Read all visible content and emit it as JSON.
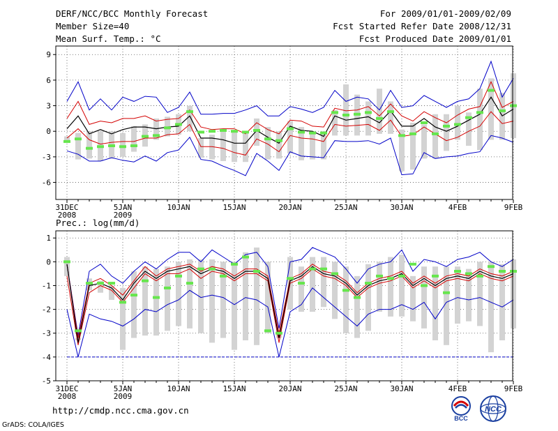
{
  "header": {
    "title": "DERF/NCC/BCC Monthly Forecast",
    "member_size": "Member Size=40",
    "variable": "Mean Surf. Temp.: °C",
    "period": "For 2009/01/01-2009/02/09",
    "started": "Fcst Started Refer Date 2008/12/31",
    "produced": "Fcst Produced Date 2009/01/01"
  },
  "footer": {
    "url": "http://cmdp.ncc.cma.gov.cn",
    "grads": "GrADS: COLA/IGES",
    "logo_bcc": "BCC",
    "logo_ncc": "NCC"
  },
  "colors": {
    "ensemble_mean": "#000000",
    "spread_std": "#d40000",
    "spread_minmax": "#0000c8",
    "box": "#d3d3d3",
    "marker": "#66e64d",
    "zero_ref": "#0000c8"
  },
  "chart_data": [
    {
      "type": "line",
      "title": "Mean Surf. Temp.: °C",
      "x_days": [
        0,
        1,
        2,
        3,
        4,
        5,
        6,
        7,
        8,
        9,
        10,
        11,
        12,
        13,
        14,
        15,
        16,
        17,
        18,
        19,
        20,
        21,
        22,
        23,
        24,
        25,
        26,
        27,
        28,
        29,
        30,
        31,
        32,
        33,
        34,
        35,
        36,
        37,
        38,
        39,
        40
      ],
      "x_tick_days": [
        0,
        5,
        10,
        15,
        20,
        25,
        30,
        35,
        40
      ],
      "x_tick_labels": [
        "31DEC",
        "5JAN",
        "10JAN",
        "15JAN",
        "20JAN",
        "25JAN",
        "30JAN",
        "4FEB",
        "9FEB"
      ],
      "x_tick_sublabels": [
        "2008",
        "2009",
        "",
        "",
        "",
        "",
        "",
        "",
        ""
      ],
      "ylim": [
        -8,
        10
      ],
      "y_ticks": [
        -6,
        -3,
        0,
        3,
        6,
        9
      ],
      "series": [
        {
          "name": "ensemble_max",
          "values": [
            3.5,
            5.8,
            2.5,
            3.8,
            2.5,
            4.0,
            3.5,
            4.1,
            4.0,
            2.2,
            2.8,
            4.6,
            2.0,
            2.0,
            2.1,
            2.1,
            2.5,
            3.0,
            1.8,
            1.8,
            2.9,
            2.6,
            2.2,
            2.8,
            4.8,
            3.5,
            4.0,
            3.8,
            2.5,
            4.8,
            2.8,
            3.0,
            4.2,
            3.5,
            2.8,
            3.5,
            3.8,
            5.0,
            8.2,
            4.0,
            6.2
          ]
        },
        {
          "name": "mean_plus_std",
          "values": [
            1.5,
            3.5,
            0.8,
            1.2,
            1.0,
            1.5,
            1.5,
            1.8,
            1.2,
            1.4,
            1.5,
            2.5,
            0.5,
            0.2,
            0.3,
            0.3,
            -0.3,
            1.0,
            0.2,
            -0.3,
            1.3,
            1.2,
            0.6,
            0.5,
            2.7,
            2.4,
            2.5,
            2.9,
            1.8,
            3.2,
            1.8,
            1.2,
            2.3,
            1.6,
            1.0,
            1.9,
            2.6,
            2.9,
            5.8,
            2.8,
            3.5
          ]
        },
        {
          "name": "ensemble_mean",
          "values": [
            0.3,
            1.8,
            -0.3,
            0.2,
            -0.3,
            0.2,
            0.5,
            0.5,
            0.3,
            0.5,
            0.6,
            1.8,
            -0.8,
            -0.8,
            -1.0,
            -1.4,
            -1.4,
            0.1,
            -0.7,
            -1.4,
            0.6,
            0.1,
            0.0,
            -0.6,
            1.8,
            1.3,
            1.5,
            1.7,
            1.0,
            2.4,
            0.6,
            0.6,
            1.5,
            0.5,
            0.0,
            0.6,
            1.3,
            2.0,
            4.0,
            1.8,
            2.6
          ]
        },
        {
          "name": "mean_minus_std",
          "values": [
            -0.8,
            0.3,
            -1.0,
            -1.5,
            -1.3,
            -1.2,
            -1.2,
            -0.8,
            -0.8,
            -0.4,
            -0.3,
            0.8,
            -1.8,
            -1.8,
            -2.0,
            -2.5,
            -2.8,
            -0.9,
            -1.5,
            -2.4,
            -0.5,
            -0.8,
            -0.9,
            -1.2,
            0.8,
            0.6,
            0.7,
            0.8,
            0.1,
            1.3,
            -0.6,
            -0.4,
            0.5,
            -0.3,
            -1.1,
            -0.7,
            0.0,
            0.6,
            2.3,
            0.9,
            1.2
          ]
        },
        {
          "name": "ensemble_min",
          "values": [
            -2.3,
            -2.7,
            -3.5,
            -3.5,
            -3.1,
            -3.4,
            -3.6,
            -2.9,
            -3.5,
            -2.5,
            -2.2,
            -0.7,
            -3.3,
            -3.5,
            -4.1,
            -4.6,
            -5.2,
            -2.6,
            -3.5,
            -4.6,
            -2.4,
            -2.9,
            -3.0,
            -3.1,
            -1.1,
            -1.2,
            -1.2,
            -1.1,
            -1.5,
            -0.8,
            -5.1,
            -5.0,
            -2.5,
            -3.2,
            -3.0,
            -2.9,
            -2.6,
            -2.4,
            -0.5,
            -0.8,
            -1.3
          ]
        },
        {
          "name": "box_high",
          "values": [
            -0.6,
            -0.2,
            0.0,
            0.0,
            0.0,
            -0.2,
            0.6,
            0.8,
            1.5,
            1.7,
            2.0,
            3.0,
            -0.8,
            -0.4,
            0.0,
            0.0,
            0.0,
            1.5,
            0.5,
            0.0,
            1.2,
            0.5,
            0.0,
            0.0,
            2.5,
            5.5,
            4.3,
            3.5,
            5.0,
            3.5,
            0.2,
            1.0,
            0.8,
            2.0,
            2.0,
            3.0,
            2.2,
            5.0,
            6.2,
            4.5,
            6.8
          ]
        },
        {
          "name": "box_low",
          "values": [
            -1.2,
            -3.3,
            -3.2,
            -3.5,
            -3.2,
            -3.0,
            -2.4,
            -1.8,
            -1.0,
            -0.6,
            -0.4,
            0.0,
            -3.1,
            -3.3,
            -3.5,
            -3.6,
            -3.6,
            -1.7,
            -3.3,
            -3.2,
            -2.6,
            -3.4,
            -3.3,
            -3.3,
            -0.5,
            -0.5,
            -0.5,
            -0.5,
            -0.3,
            -0.3,
            -4.7,
            -4.5,
            -3.2,
            -3.2,
            -2.3,
            -1.0,
            -1.7,
            -2.2,
            -1.0,
            -1.0,
            -0.8
          ]
        },
        {
          "name": "marker",
          "values": [
            -1.2,
            -0.9,
            -2.0,
            -1.8,
            -1.7,
            -1.8,
            -1.7,
            -0.6,
            -0.5,
            0.4,
            0.8,
            2.3,
            -0.1,
            0.0,
            0.1,
            0.0,
            -0.1,
            0.1,
            -0.9,
            -1.1,
            0.3,
            -0.1,
            -0.2,
            -0.2,
            2.2,
            1.9,
            2.0,
            2.2,
            1.5,
            2.3,
            -0.5,
            -0.3,
            1.0,
            -0.3,
            0.6,
            0.8,
            1.6,
            2.2,
            4.8,
            2.4,
            3.0
          ]
        }
      ]
    },
    {
      "type": "line",
      "title": "Prec.: log(mm/d)",
      "x_days": [
        0,
        1,
        2,
        3,
        4,
        5,
        6,
        7,
        8,
        9,
        10,
        11,
        12,
        13,
        14,
        15,
        16,
        17,
        18,
        19,
        20,
        21,
        22,
        23,
        24,
        25,
        26,
        27,
        28,
        29,
        30,
        31,
        32,
        33,
        34,
        35,
        36,
        37,
        38,
        39,
        40
      ],
      "x_tick_days": [
        0,
        5,
        10,
        15,
        20,
        25,
        30,
        35,
        40
      ],
      "x_tick_labels": [
        "31DEC",
        "5JAN",
        "10JAN",
        "15JAN",
        "20JAN",
        "25JAN",
        "30JAN",
        "4FEB",
        "9FEB"
      ],
      "x_tick_sublabels": [
        "2008",
        "2009",
        "",
        "",
        "",
        "",
        "",
        "",
        ""
      ],
      "ylim": [
        -5,
        1.3
      ],
      "y_ticks": [
        -5,
        -4,
        -3,
        -2,
        -1,
        0,
        1
      ],
      "reference_line": -4,
      "series": [
        {
          "name": "ensemble_max",
          "values": [
            -0.1,
            -3.1,
            -0.4,
            -0.1,
            -0.6,
            -0.9,
            -0.4,
            0.0,
            -0.3,
            0.1,
            0.4,
            0.4,
            0.0,
            0.5,
            0.2,
            -0.1,
            0.3,
            0.4,
            -0.2,
            -2.8,
            0.0,
            0.1,
            0.6,
            0.4,
            0.2,
            -0.3,
            -0.9,
            -0.3,
            -0.1,
            0.0,
            0.5,
            -0.4,
            0.1,
            0.0,
            -0.2,
            0.1,
            0.2,
            0.4,
            0.0,
            -0.2,
            0.1
          ]
        },
        {
          "name": "mean_plus_std",
          "values": [
            -0.1,
            -3.2,
            -0.9,
            -0.7,
            -1.0,
            -1.4,
            -0.8,
            -0.2,
            -0.6,
            -0.3,
            -0.2,
            -0.1,
            -0.4,
            -0.2,
            -0.3,
            -0.6,
            -0.3,
            -0.3,
            -0.6,
            -3.0,
            -0.7,
            -0.5,
            -0.1,
            -0.4,
            -0.5,
            -0.8,
            -1.3,
            -0.9,
            -0.7,
            -0.6,
            -0.4,
            -0.9,
            -0.6,
            -0.9,
            -0.6,
            -0.5,
            -0.6,
            -0.3,
            -0.5,
            -0.6,
            -0.4
          ]
        },
        {
          "name": "ensemble_mean",
          "values": [
            -0.1,
            -3.4,
            -1.0,
            -0.9,
            -1.1,
            -1.6,
            -0.9,
            -0.4,
            -0.7,
            -0.4,
            -0.3,
            -0.2,
            -0.5,
            -0.3,
            -0.4,
            -0.7,
            -0.4,
            -0.4,
            -0.7,
            -3.2,
            -0.8,
            -0.6,
            -0.2,
            -0.5,
            -0.6,
            -0.9,
            -1.4,
            -1.0,
            -0.8,
            -0.7,
            -0.5,
            -1.0,
            -0.7,
            -1.0,
            -0.7,
            -0.6,
            -0.7,
            -0.4,
            -0.6,
            -0.7,
            -0.5
          ]
        },
        {
          "name": "mean_minus_std",
          "values": [
            -0.6,
            -3.5,
            -1.3,
            -1.0,
            -1.2,
            -1.7,
            -1.1,
            -0.5,
            -0.8,
            -0.5,
            -0.5,
            -0.3,
            -0.7,
            -0.4,
            -0.5,
            -0.8,
            -0.5,
            -0.5,
            -0.8,
            -3.4,
            -0.9,
            -0.7,
            -0.3,
            -0.6,
            -0.7,
            -1.0,
            -1.5,
            -1.1,
            -0.9,
            -0.8,
            -0.6,
            -1.1,
            -0.8,
            -1.1,
            -0.8,
            -0.7,
            -0.8,
            -0.5,
            -0.7,
            -0.8,
            -0.6
          ]
        },
        {
          "name": "ensemble_min",
          "values": [
            -2.0,
            -4.0,
            -2.2,
            -2.4,
            -2.5,
            -2.7,
            -2.4,
            -2.0,
            -2.1,
            -1.8,
            -1.6,
            -1.2,
            -1.5,
            -1.4,
            -1.5,
            -1.8,
            -1.5,
            -1.6,
            -1.9,
            -4.0,
            -2.1,
            -1.8,
            -1.1,
            -1.5,
            -1.9,
            -2.3,
            -2.7,
            -2.2,
            -2.0,
            -2.0,
            -1.8,
            -2.0,
            -1.7,
            -2.4,
            -1.7,
            -1.5,
            -1.6,
            -1.5,
            -1.7,
            -1.9,
            -1.6
          ]
        },
        {
          "name": "box_high",
          "values": [
            0.2,
            -3.2,
            -0.7,
            -0.8,
            -1.0,
            -1.1,
            -0.4,
            -0.2,
            -0.3,
            -0.2,
            0.0,
            0.1,
            0.1,
            0.1,
            0.0,
            0.0,
            0.4,
            0.6,
            0.0,
            -2.9,
            0.2,
            -0.2,
            0.2,
            0.2,
            0.0,
            -0.2,
            -0.6,
            -0.1,
            0.0,
            0.2,
            0.3,
            -0.6,
            -0.2,
            -0.2,
            -0.2,
            -0.2,
            -0.3,
            0.0,
            0.0,
            -0.1,
            0.1
          ]
        },
        {
          "name": "box_low",
          "values": [
            -0.6,
            -3.3,
            -1.2,
            -1.3,
            -1.6,
            -3.7,
            -3.2,
            -3.1,
            -3.1,
            -2.9,
            -2.7,
            -2.8,
            -3.0,
            -3.4,
            -3.2,
            -3.7,
            -3.3,
            -3.5,
            -3.0,
            -3.2,
            -2.0,
            -2.1,
            -2.1,
            -1.9,
            -2.4,
            -3.0,
            -3.2,
            -2.9,
            -2.1,
            -2.3,
            -2.3,
            -2.5,
            -2.8,
            -3.3,
            -3.5,
            -2.6,
            -2.5,
            -2.7,
            -3.8,
            -3.3,
            -2.8
          ]
        },
        {
          "name": "marker",
          "values": [
            0.0,
            -2.9,
            -0.9,
            -0.9,
            -0.9,
            -1.7,
            -1.4,
            -0.8,
            -1.5,
            -1.1,
            -0.6,
            -0.9,
            -0.3,
            -0.3,
            -0.6,
            -0.1,
            0.2,
            -0.4,
            -2.9,
            -3.0,
            -0.7,
            -0.9,
            -0.3,
            -0.3,
            -0.5,
            -1.2,
            -1.5,
            -0.9,
            -0.6,
            -0.7,
            -0.6,
            -0.1,
            -1.0,
            -0.6,
            -1.3,
            -0.4,
            -0.5,
            -0.6,
            -0.2,
            -0.4,
            -0.4
          ]
        }
      ]
    }
  ]
}
